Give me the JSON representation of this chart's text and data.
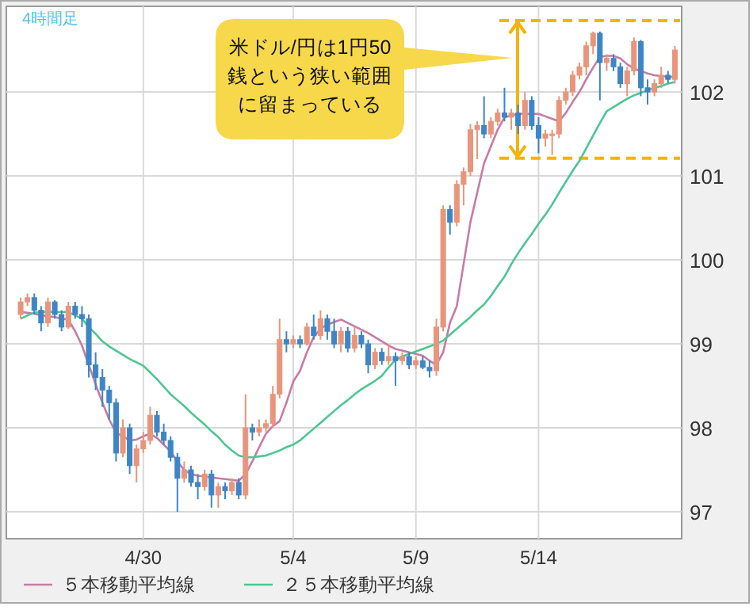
{
  "chart_data": {
    "type": "candlestick",
    "title": "4時間足",
    "annotations": [
      "米ドル/円は1円50銭という狭い範囲に留まっている"
    ],
    "categories": [
      null,
      null,
      null,
      null,
      null,
      null,
      null,
      null,
      null,
      null,
      null,
      null,
      null,
      null,
      null,
      null,
      null,
      null,
      "4/30",
      null,
      null,
      null,
      null,
      null,
      null,
      null,
      null,
      null,
      null,
      null,
      null,
      null,
      null,
      null,
      null,
      null,
      null,
      null,
      null,
      null,
      "5/4",
      null,
      null,
      null,
      null,
      null,
      null,
      null,
      null,
      null,
      null,
      null,
      null,
      null,
      null,
      null,
      null,
      null,
      "5/9",
      null,
      null,
      null,
      null,
      null,
      null,
      null,
      null,
      null,
      null,
      null,
      null,
      null,
      null,
      null,
      null,
      null,
      "5/14",
      null,
      null,
      null,
      null,
      null,
      null,
      null,
      null,
      null,
      null,
      null,
      null,
      null,
      null,
      null,
      null,
      null,
      null,
      null,
      null
    ],
    "ohlc": [
      [
        99.35,
        99.55,
        99.3,
        99.5
      ],
      [
        99.5,
        99.6,
        99.45,
        99.55
      ],
      [
        99.55,
        99.6,
        99.35,
        99.4
      ],
      [
        99.4,
        99.45,
        99.15,
        99.25
      ],
      [
        99.25,
        99.55,
        99.2,
        99.5
      ],
      [
        99.5,
        99.52,
        99.3,
        99.35
      ],
      [
        99.35,
        99.4,
        99.15,
        99.2
      ],
      [
        99.2,
        99.5,
        99.18,
        99.45
      ],
      [
        99.45,
        99.5,
        99.3,
        99.35
      ],
      [
        99.35,
        99.45,
        99.2,
        99.3
      ],
      [
        99.3,
        99.35,
        98.6,
        98.75
      ],
      [
        98.75,
        98.9,
        98.45,
        98.6
      ],
      [
        98.6,
        98.7,
        98.25,
        98.45
      ],
      [
        98.45,
        98.5,
        98.1,
        98.3
      ],
      [
        98.3,
        98.35,
        97.6,
        97.7
      ],
      [
        97.7,
        98.1,
        97.65,
        98.0
      ],
      [
        98.0,
        98.05,
        97.45,
        97.55
      ],
      [
        97.55,
        97.8,
        97.35,
        97.75
      ],
      [
        97.75,
        97.95,
        97.7,
        97.85
      ],
      [
        97.85,
        98.25,
        97.8,
        98.15
      ],
      [
        98.15,
        98.2,
        97.9,
        97.95
      ],
      [
        97.95,
        98.05,
        97.8,
        97.85
      ],
      [
        97.85,
        97.9,
        97.6,
        97.65
      ],
      [
        97.65,
        97.7,
        97.0,
        97.4
      ],
      [
        97.4,
        97.6,
        97.35,
        97.5
      ],
      [
        97.5,
        97.55,
        97.3,
        97.35
      ],
      [
        97.35,
        97.45,
        97.15,
        97.3
      ],
      [
        97.3,
        97.5,
        97.25,
        97.45
      ],
      [
        97.45,
        97.5,
        97.05,
        97.2
      ],
      [
        97.2,
        97.35,
        97.05,
        97.3
      ],
      [
        97.3,
        97.35,
        97.15,
        97.25
      ],
      [
        97.25,
        97.4,
        97.2,
        97.35
      ],
      [
        97.35,
        97.4,
        97.15,
        97.2
      ],
      [
        97.2,
        98.4,
        97.15,
        98.0
      ],
      [
        98.0,
        98.05,
        97.85,
        97.95
      ],
      [
        97.95,
        98.1,
        97.9,
        98.0
      ],
      [
        98.0,
        98.1,
        97.95,
        98.05
      ],
      [
        98.05,
        98.5,
        98.0,
        98.4
      ],
      [
        98.4,
        99.3,
        98.35,
        99.05
      ],
      [
        99.05,
        99.15,
        98.9,
        99.0
      ],
      [
        99.0,
        99.1,
        98.95,
        99.05
      ],
      [
        99.05,
        99.1,
        98.95,
        99.0
      ],
      [
        99.0,
        99.25,
        98.98,
        99.2
      ],
      [
        99.2,
        99.35,
        99.05,
        99.1
      ],
      [
        99.1,
        99.4,
        99.05,
        99.3
      ],
      [
        99.3,
        99.35,
        99.05,
        99.15
      ],
      [
        99.15,
        99.3,
        98.95,
        99.0
      ],
      [
        99.0,
        99.2,
        98.9,
        99.15
      ],
      [
        99.15,
        99.2,
        98.9,
        98.95
      ],
      [
        98.95,
        99.2,
        98.9,
        99.1
      ],
      [
        99.1,
        99.15,
        98.95,
        99.0
      ],
      [
        99.0,
        99.05,
        98.65,
        98.75
      ],
      [
        98.75,
        98.95,
        98.7,
        98.9
      ],
      [
        98.9,
        98.95,
        98.75,
        98.8
      ],
      [
        98.8,
        99.0,
        98.75,
        98.85
      ],
      [
        98.85,
        98.9,
        98.5,
        98.8
      ],
      [
        98.8,
        98.9,
        98.75,
        98.85
      ],
      [
        98.85,
        98.9,
        98.7,
        98.75
      ],
      [
        98.75,
        98.85,
        98.7,
        98.8
      ],
      [
        98.8,
        98.85,
        98.7,
        98.72
      ],
      [
        98.72,
        98.8,
        98.6,
        98.68
      ],
      [
        98.68,
        99.3,
        98.62,
        99.2
      ],
      [
        99.2,
        100.65,
        99.15,
        100.6
      ],
      [
        100.6,
        100.65,
        100.3,
        100.45
      ],
      [
        100.45,
        100.95,
        100.4,
        100.9
      ],
      [
        100.9,
        101.1,
        100.65,
        101.05
      ],
      [
        101.05,
        101.62,
        101.0,
        101.55
      ],
      [
        101.55,
        101.65,
        101.2,
        101.6
      ],
      [
        101.6,
        101.95,
        101.45,
        101.5
      ],
      [
        101.5,
        101.7,
        101.45,
        101.65
      ],
      [
        101.65,
        101.8,
        101.6,
        101.75
      ],
      [
        101.75,
        102.05,
        101.65,
        101.7
      ],
      [
        101.7,
        101.8,
        101.55,
        101.75
      ],
      [
        101.75,
        101.85,
        101.5,
        101.6
      ],
      [
        101.6,
        102.0,
        101.55,
        101.9
      ],
      [
        101.9,
        101.95,
        101.55,
        101.6
      ],
      [
        101.6,
        101.7,
        101.27,
        101.45
      ],
      [
        101.45,
        101.55,
        101.35,
        101.5
      ],
      [
        101.5,
        101.55,
        101.25,
        101.5
      ],
      [
        101.5,
        101.95,
        101.45,
        101.9
      ],
      [
        101.9,
        102.05,
        101.85,
        102.0
      ],
      [
        102.0,
        102.25,
        101.95,
        102.2
      ],
      [
        102.2,
        102.35,
        102.15,
        102.3
      ],
      [
        102.3,
        102.6,
        102.2,
        102.55
      ],
      [
        102.55,
        102.72,
        102.45,
        102.7
      ],
      [
        102.7,
        102.72,
        101.9,
        102.35
      ],
      [
        102.35,
        102.45,
        102.25,
        102.4
      ],
      [
        102.4,
        102.45,
        102.25,
        102.3
      ],
      [
        102.3,
        102.35,
        102.05,
        102.1
      ],
      [
        102.1,
        102.3,
        101.95,
        102.25
      ],
      [
        102.25,
        102.65,
        102.2,
        102.6
      ],
      [
        102.6,
        102.62,
        101.95,
        102.05
      ],
      [
        102.05,
        102.15,
        101.85,
        102.0
      ],
      [
        102.0,
        102.15,
        101.95,
        102.1
      ],
      [
        102.1,
        102.3,
        102.05,
        102.2
      ],
      [
        102.2,
        102.25,
        102.1,
        102.15
      ],
      [
        102.15,
        102.55,
        102.1,
        102.5
      ]
    ],
    "colors": [
      "#e8957c",
      "#e8957c",
      "#3d85c6",
      "#3d85c6",
      "#e8957c",
      "#3d85c6",
      "#3d85c6",
      "#e8957c",
      "#3d85c6",
      "#3d85c6",
      "#3d85c6",
      "#3d85c6",
      "#3d85c6",
      "#3d85c6",
      "#3d85c6",
      "#e8957c",
      "#3d85c6",
      "#e8957c",
      "#e8957c",
      "#e8957c",
      "#3d85c6",
      "#3d85c6",
      "#3d85c6",
      "#3d85c6",
      "#e8957c",
      "#3d85c6",
      "#3d85c6",
      "#e8957c",
      "#3d85c6",
      "#e8957c",
      "#3d85c6",
      "#e8957c",
      "#3d85c6",
      "#e8957c",
      "#3d85c6",
      "#e8957c",
      "#e8957c",
      "#e8957c",
      "#e8957c",
      "#3d85c6",
      "#e8957c",
      "#3d85c6",
      "#e8957c",
      "#3d85c6",
      "#e8957c",
      "#3d85c6",
      "#3d85c6",
      "#e8957c",
      "#3d85c6",
      "#e8957c",
      "#3d85c6",
      "#3d85c6",
      "#e8957c",
      "#3d85c6",
      "#e8957c",
      "#3d85c6",
      "#e8957c",
      "#3d85c6",
      "#e8957c",
      "#3d85c6",
      "#3d85c6",
      "#e8957c",
      "#e8957c",
      "#3d85c6",
      "#e8957c",
      "#e8957c",
      "#e8957c",
      "#e8957c",
      "#3d85c6",
      "#e8957c",
      "#e8957c",
      "#3d85c6",
      "#e8957c",
      "#3d85c6",
      "#e8957c",
      "#3d85c6",
      "#3d85c6",
      "#e8957c",
      "#e8957c",
      "#e8957c",
      "#e8957c",
      "#e8957c",
      "#e8957c",
      "#e8957c",
      "#e8957c",
      "#3d85c6",
      "#e8957c",
      "#3d85c6",
      "#3d85c6",
      "#e8957c",
      "#e8957c",
      "#3d85c6",
      "#3d85c6",
      "#e8957c",
      "#e8957c",
      "#3d85c6",
      "#e8957c"
    ],
    "series": [
      {
        "name": "５本移動平均線",
        "type": "line",
        "color": "#c77ba6",
        "values": [
          99.38,
          99.37,
          99.36,
          99.34,
          99.33,
          99.32,
          99.3,
          99.29,
          99.15,
          98.98,
          98.75,
          98.52,
          98.3,
          98.1,
          97.94,
          97.9,
          97.85,
          97.86,
          97.9,
          97.93,
          97.88,
          97.8,
          97.72,
          97.6,
          97.5,
          97.45,
          97.43,
          97.42,
          97.41,
          97.4,
          97.39,
          97.38,
          97.37,
          97.45,
          97.6,
          97.77,
          97.93,
          98.02,
          98.08,
          98.3,
          98.55,
          98.68,
          98.9,
          99.08,
          99.18,
          99.23,
          99.26,
          99.29,
          99.25,
          99.21,
          99.17,
          99.13,
          99.08,
          99.03,
          98.98,
          98.94,
          98.92,
          98.9,
          98.88,
          98.86,
          98.8,
          98.75,
          98.9,
          99.25,
          99.45,
          99.95,
          100.45,
          100.8,
          101.15,
          101.35,
          101.55,
          101.7,
          101.72,
          101.74,
          101.74,
          101.74,
          101.74,
          101.71,
          101.68,
          101.65,
          101.75,
          101.88,
          102.0,
          102.15,
          102.29,
          102.42,
          102.43,
          102.43,
          102.4,
          102.33,
          102.28,
          102.25,
          102.22,
          102.2,
          102.19,
          102.18,
          102.18
        ]
      },
      {
        "name": "２５本移動平均線",
        "type": "line",
        "color": "#4cc791",
        "values": [
          99.3,
          99.34,
          99.37,
          99.38,
          99.38,
          99.38,
          99.38,
          99.38,
          99.34,
          99.3,
          99.2,
          99.12,
          99.03,
          98.97,
          98.92,
          98.87,
          98.82,
          98.78,
          98.74,
          98.66,
          98.58,
          98.49,
          98.4,
          98.33,
          98.26,
          98.18,
          98.11,
          98.04,
          97.96,
          97.89,
          97.8,
          97.73,
          97.67,
          97.65,
          97.65,
          97.66,
          97.67,
          97.7,
          97.73,
          97.77,
          97.8,
          97.85,
          97.92,
          97.99,
          98.06,
          98.13,
          98.2,
          98.27,
          98.33,
          98.4,
          98.46,
          98.51,
          98.56,
          98.62,
          98.72,
          98.81,
          98.85,
          98.88,
          98.91,
          98.94,
          98.97,
          99.0,
          99.04,
          99.11,
          99.18,
          99.25,
          99.32,
          99.4,
          99.47,
          99.57,
          99.69,
          99.8,
          99.95,
          100.08,
          100.2,
          100.31,
          100.43,
          100.54,
          100.66,
          100.8,
          100.93,
          101.06,
          101.18,
          101.33,
          101.48,
          101.63,
          101.77,
          101.82,
          101.87,
          101.92,
          101.96,
          101.99,
          102.02,
          102.05,
          102.07,
          102.1,
          102.12
        ]
      }
    ],
    "ref_lines": [
      {
        "axis": "y",
        "value": 102.85,
        "color": "#f5b400",
        "line_style": "dashed"
      },
      {
        "axis": "y",
        "value": 101.21,
        "color": "#f5b400",
        "line_style": "dashed"
      }
    ],
    "ylim": [
      96.68,
      103.02
    ],
    "yticks": [
      97,
      98,
      99,
      100,
      101,
      102
    ],
    "grid": true,
    "legend": "bottom"
  }
}
